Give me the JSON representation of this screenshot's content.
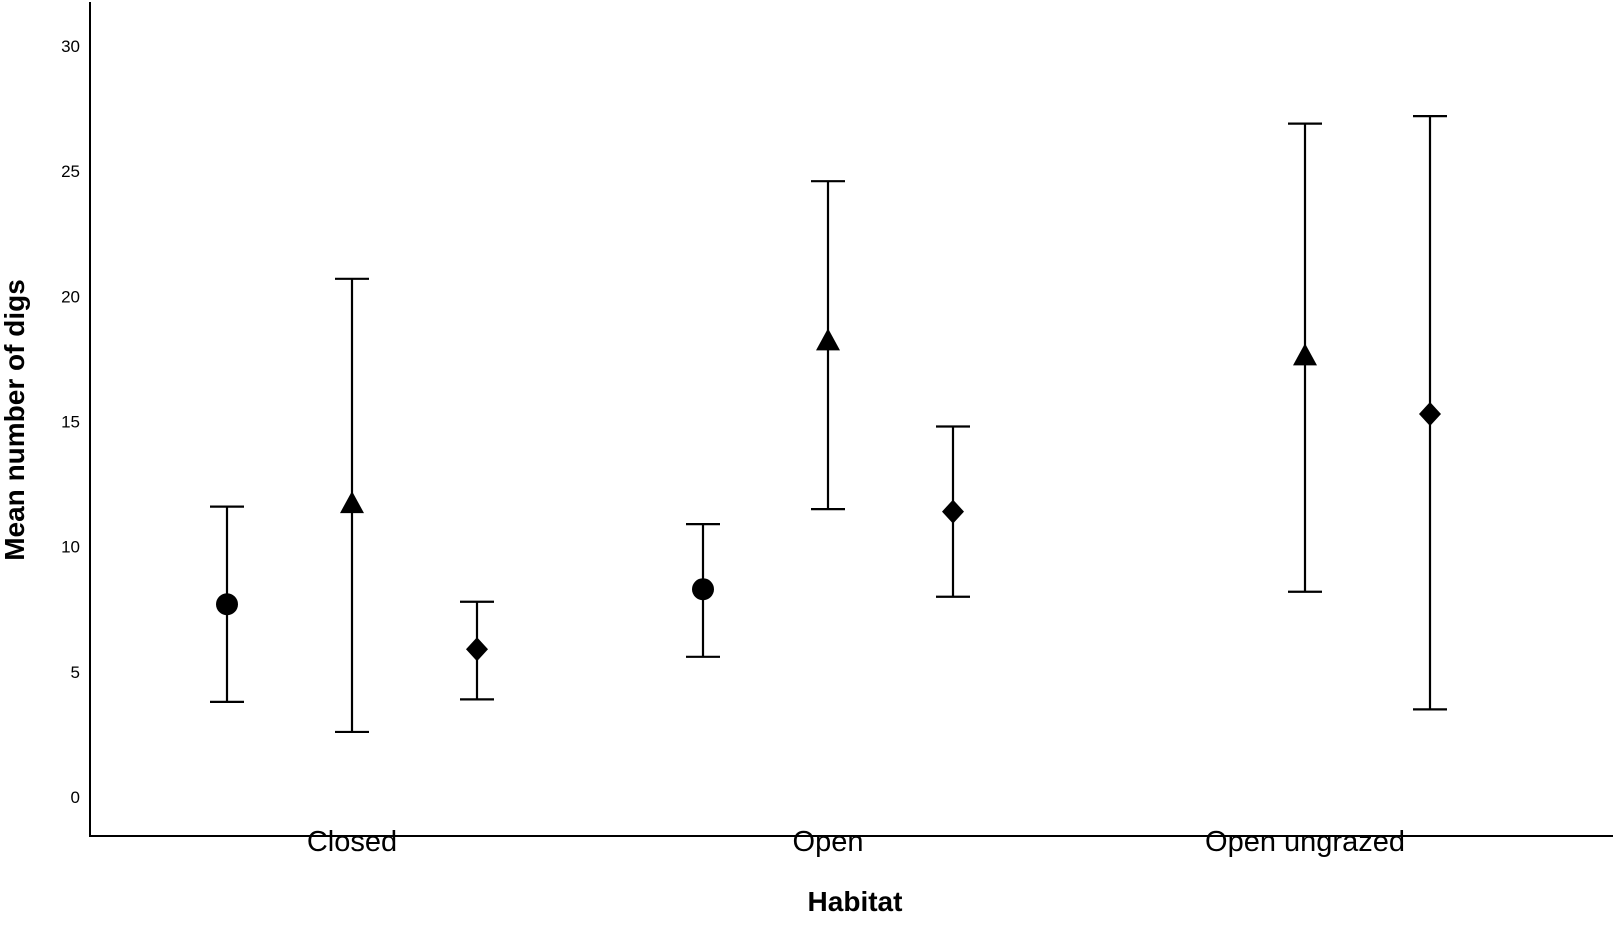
{
  "chart_data": {
    "type": "scatter",
    "title": "",
    "xlabel": "Habitat",
    "ylabel": "Mean number of digs",
    "categories": [
      "Closed",
      "Open",
      "Open ungrazed"
    ],
    "yticks": [
      "0",
      "5",
      "10",
      "15",
      "20",
      "25",
      "30"
    ],
    "ylim": [
      -0.5,
      31.5
    ],
    "grid": false,
    "legend": "none",
    "series": [
      {
        "marker": "circle",
        "points": [
          {
            "category": "Closed",
            "mean": 7.7,
            "lower": 3.8,
            "upper": 11.6
          },
          {
            "category": "Open",
            "mean": 8.3,
            "lower": 5.6,
            "upper": 10.9
          }
        ]
      },
      {
        "marker": "triangle",
        "points": [
          {
            "category": "Closed",
            "mean": 11.7,
            "lower": 2.6,
            "upper": 20.7
          },
          {
            "category": "Open",
            "mean": 18.2,
            "lower": 11.5,
            "upper": 24.6
          },
          {
            "category": "Open ungrazed",
            "mean": 17.6,
            "lower": 8.2,
            "upper": 26.9
          }
        ]
      },
      {
        "marker": "diamond",
        "points": [
          {
            "category": "Closed",
            "mean": 5.9,
            "lower": 3.9,
            "upper": 7.8
          },
          {
            "category": "Open",
            "mean": 11.4,
            "lower": 8.0,
            "upper": 14.8
          },
          {
            "category": "Open ungrazed",
            "mean": 15.3,
            "lower": 3.5,
            "upper": 27.2
          }
        ]
      }
    ]
  }
}
